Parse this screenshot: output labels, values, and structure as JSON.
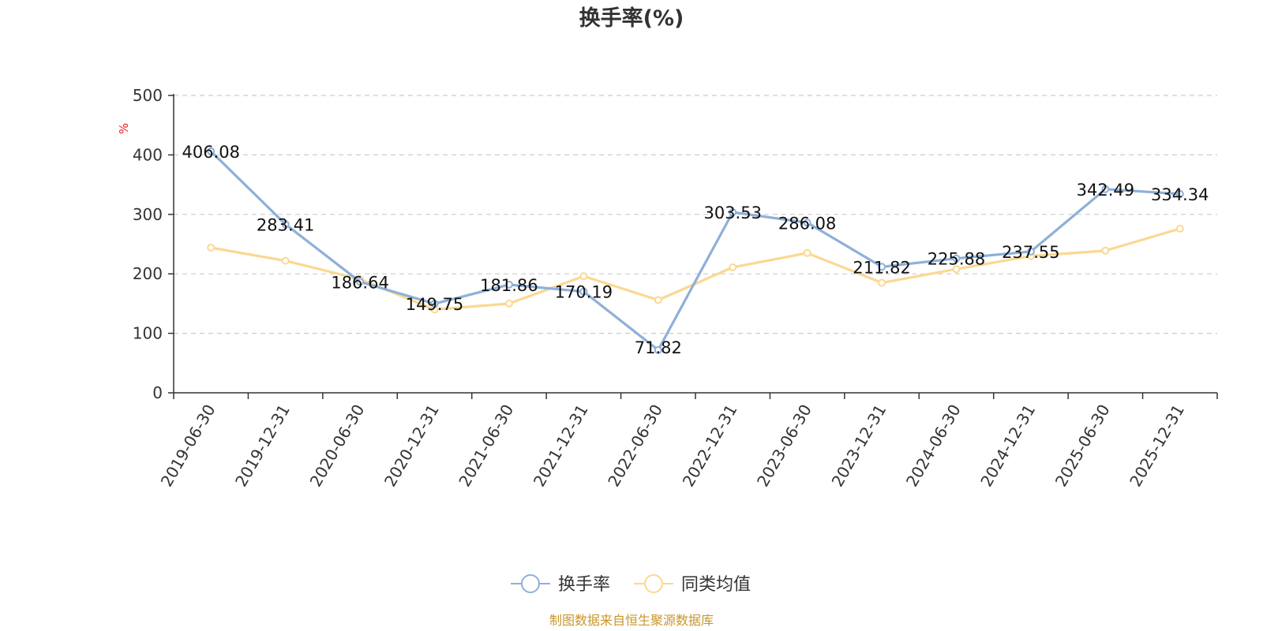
{
  "chart_data": {
    "type": "line",
    "title": "换手率(%)",
    "ylabel": "%",
    "xlabel": "",
    "ylim": [
      0,
      500
    ],
    "yticks": [
      "0",
      "100",
      "200",
      "300",
      "400",
      "500"
    ],
    "grid": true,
    "legend_position": "bottom",
    "categories": [
      "2019-06-30",
      "2019-12-31",
      "2020-06-30",
      "2020-12-31",
      "2021-06-30",
      "2021-12-31",
      "2022-06-30",
      "2022-12-31",
      "2023-06-30",
      "2023-12-31",
      "2024-06-30",
      "2024-12-31",
      "2025-06-30",
      "2025-12-31"
    ],
    "series": [
      {
        "name": "换手率",
        "color": "#8eb0d9",
        "values": [
          406.08,
          283.41,
          186.64,
          149.75,
          181.86,
          170.19,
          71.82,
          303.53,
          286.08,
          211.82,
          225.88,
          237.55,
          342.49,
          334.34
        ],
        "labels": [
          "406.08",
          "283.41",
          "186.64",
          "149.75",
          "181.86",
          "170.19",
          "71.82",
          "303.53",
          "286.08",
          "211.82",
          "225.88",
          "237.55",
          "342.49",
          "334.34"
        ]
      },
      {
        "name": "同类均值",
        "color": "#fbd892",
        "values": [
          244,
          222,
          191,
          140,
          150,
          196,
          156,
          211,
          235,
          185,
          208,
          230,
          239,
          276
        ]
      }
    ],
    "source": "制图数据来自恒生聚源数据库"
  }
}
